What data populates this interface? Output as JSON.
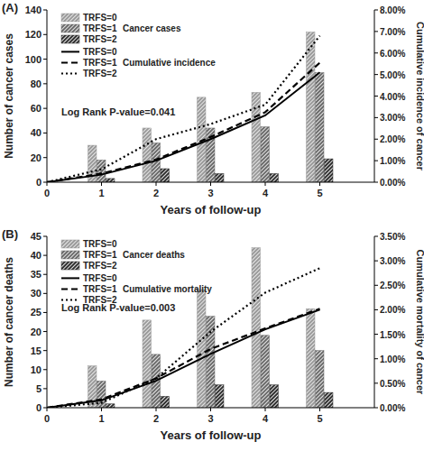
{
  "chart_data": [
    {
      "type": "bar",
      "title": "(A)",
      "x": [
        0,
        1,
        2,
        3,
        4,
        5
      ],
      "xlim": [
        0,
        6
      ],
      "xticks": [
        0,
        1,
        2,
        3,
        4,
        5
      ],
      "xlabel": "Years of follow-up",
      "ylabel": "Number of cancer cases",
      "ylim": [
        0,
        140
      ],
      "yticks": [
        0,
        20,
        40,
        60,
        80,
        100,
        120,
        140
      ],
      "y2label": "Cumulative incidence of cancer",
      "y2lim": [
        0,
        8
      ],
      "y2ticks": [
        {
          "value": 0,
          "label": "0.00%"
        },
        {
          "value": 1,
          "label": "1.00%"
        },
        {
          "value": 2,
          "label": "2.00%"
        },
        {
          "value": 3,
          "label": "3.00%"
        },
        {
          "value": 4,
          "label": "4.00%"
        },
        {
          "value": 5,
          "label": "5.00%"
        },
        {
          "value": 6,
          "label": "6.00%"
        },
        {
          "value": 7,
          "label": "7.00%"
        },
        {
          "value": 8,
          "label": "8.00%"
        }
      ],
      "legend": "upper left",
      "grid": false,
      "annotations": [
        "Cancer cases",
        "Cumulative incidence",
        "Log Rank P-value=0.041"
      ],
      "series": [
        {
          "name": "TRFS=0",
          "type": "bar",
          "color": "#9a9a9a",
          "values": [
            null,
            30,
            44,
            69,
            73,
            122
          ]
        },
        {
          "name": "TRFS=1",
          "type": "bar",
          "color": "#6a6a6a",
          "values": [
            null,
            18,
            32,
            44,
            45,
            89
          ]
        },
        {
          "name": "TRFS=2",
          "type": "bar",
          "color": "#303030",
          "values": [
            null,
            3,
            11,
            7,
            7,
            19
          ]
        },
        {
          "name": "TRFS=0",
          "type": "line",
          "axis": "y2",
          "color": "#000000",
          "line_style": "solid",
          "values": [
            0,
            0.35,
            1.0,
            2.0,
            3.1,
            5.1
          ]
        },
        {
          "name": "TRFS=1",
          "type": "line",
          "axis": "y2",
          "color": "#000000",
          "line_style": "dashed",
          "values": [
            0,
            0.4,
            1.05,
            2.1,
            3.25,
            5.55
          ]
        },
        {
          "name": "TRFS=2",
          "type": "line",
          "axis": "y2",
          "color": "#000000",
          "line_style": "dotted",
          "values": [
            0,
            0.6,
            2.0,
            2.7,
            3.6,
            6.8
          ]
        }
      ]
    },
    {
      "type": "bar",
      "title": "(B)",
      "x": [
        0,
        1,
        2,
        3,
        4,
        5
      ],
      "xlim": [
        0,
        6
      ],
      "xticks": [
        0,
        1,
        2,
        3,
        4,
        5
      ],
      "xlabel": "Years of follow-up",
      "ylabel": "Number of cancer deaths",
      "ylim": [
        0,
        45
      ],
      "yticks": [
        0,
        5,
        10,
        15,
        20,
        25,
        30,
        35,
        40,
        45
      ],
      "y2label": "Cumulative mortality of cancer",
      "y2lim": [
        0,
        3.5
      ],
      "y2ticks": [
        {
          "value": 0,
          "label": "0.00%"
        },
        {
          "value": 0.5,
          "label": "0.50%"
        },
        {
          "value": 1,
          "label": "1.00%"
        },
        {
          "value": 1.5,
          "label": "1.50%"
        },
        {
          "value": 2,
          "label": "2.00%"
        },
        {
          "value": 2.5,
          "label": "2.50%"
        },
        {
          "value": 3,
          "label": "3.00%"
        },
        {
          "value": 3.5,
          "label": "3.50%"
        }
      ],
      "legend": "upper left",
      "grid": false,
      "annotations": [
        "Cancer deaths",
        "Cumulative mortality",
        "Log Rank P-value=0.003"
      ],
      "series": [
        {
          "name": "TRFS=0",
          "type": "bar",
          "color": "#9a9a9a",
          "values": [
            null,
            11,
            23,
            31,
            42,
            26
          ]
        },
        {
          "name": "TRFS=1",
          "type": "bar",
          "color": "#6a6a6a",
          "values": [
            null,
            7,
            14,
            24,
            19,
            15
          ]
        },
        {
          "name": "TRFS=2",
          "type": "bar",
          "color": "#303030",
          "values": [
            null,
            1,
            3,
            6,
            6,
            4
          ]
        },
        {
          "name": "TRFS=0",
          "type": "line",
          "axis": "y2",
          "color": "#000000",
          "line_style": "solid",
          "values": [
            0,
            0.15,
            0.55,
            1.1,
            1.6,
            2.0
          ]
        },
        {
          "name": "TRFS=1",
          "type": "line",
          "axis": "y2",
          "color": "#000000",
          "line_style": "dashed",
          "values": [
            0,
            0.17,
            0.6,
            1.2,
            1.62,
            2.02
          ]
        },
        {
          "name": "TRFS=2",
          "type": "line",
          "axis": "y2",
          "color": "#000000",
          "line_style": "dotted",
          "values": [
            0,
            0.1,
            0.6,
            1.55,
            2.35,
            2.85
          ]
        }
      ]
    }
  ]
}
